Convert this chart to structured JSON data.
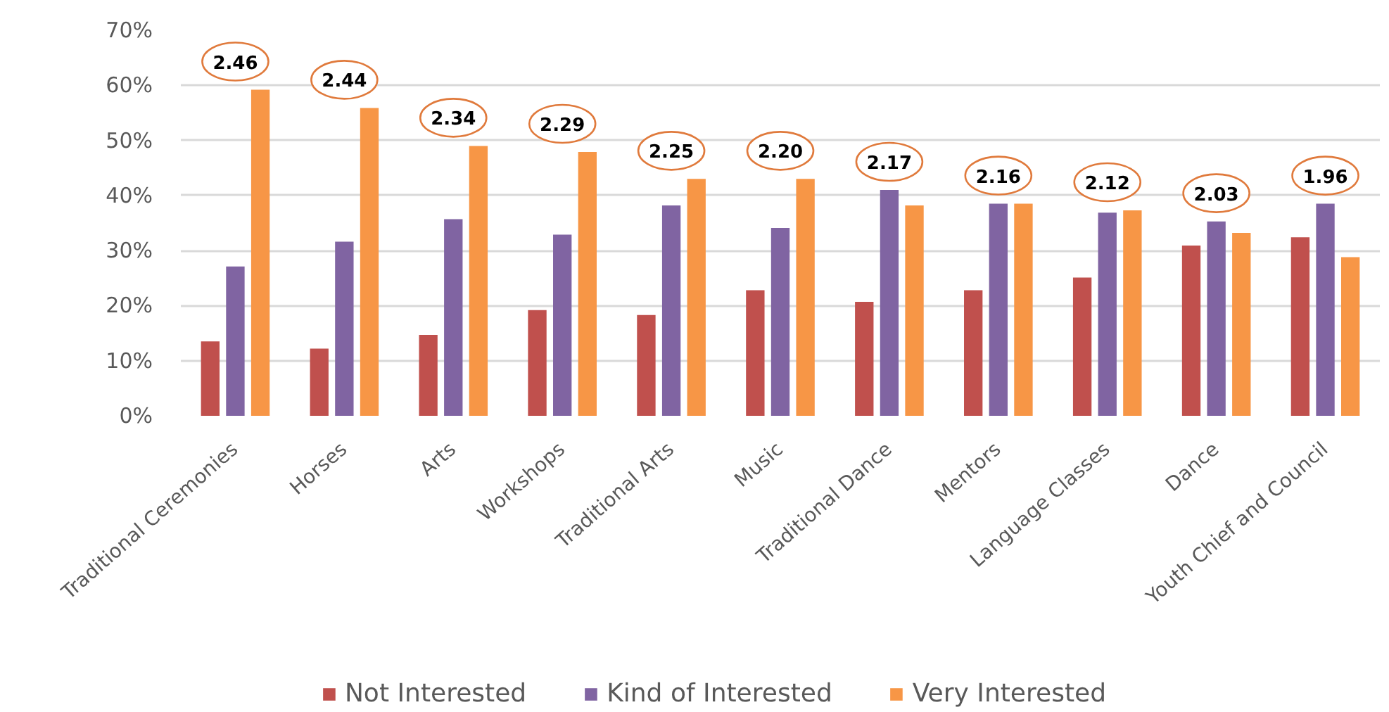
{
  "chart_data": {
    "type": "bar",
    "categories": [
      "Traditional Ceremonies",
      "Horses",
      "Arts",
      "Workshops",
      "Traditional Arts",
      "Music",
      "Traditional Dance",
      "Mentors",
      "Language Classes",
      "Dance",
      "Youth Chief and Council"
    ],
    "series": [
      {
        "name": "Not Interested",
        "color": "#c0504d",
        "values": [
          13.5,
          12.2,
          14.7,
          19.2,
          18.3,
          22.8,
          20.7,
          22.8,
          25.1,
          30.9,
          32.4
        ]
      },
      {
        "name": "Kind of Interested",
        "color": "#8064a2",
        "values": [
          27.1,
          31.6,
          35.7,
          32.9,
          38.2,
          34.1,
          41.0,
          38.5,
          36.9,
          35.3,
          38.5
        ]
      },
      {
        "name": "Very Interested",
        "color": "#f79646",
        "values": [
          59.2,
          55.9,
          49.0,
          47.9,
          43.0,
          43.0,
          38.2,
          38.5,
          37.3,
          33.2,
          28.8
        ]
      }
    ],
    "ylim": [
      0,
      70
    ],
    "yticks": [
      {
        "value": 0,
        "label": "0%"
      },
      {
        "value": 10,
        "label": "10%"
      },
      {
        "value": 20,
        "label": "20%"
      },
      {
        "value": 30,
        "label": "30%"
      },
      {
        "value": 40,
        "label": "40%"
      },
      {
        "value": 50,
        "label": "50%"
      },
      {
        "value": 60,
        "label": "60%"
      },
      {
        "value": 70,
        "label": "70%"
      }
    ],
    "grid": "y",
    "legend": "bottom",
    "annotations": [
      "2.46",
      "2.44",
      "2.34",
      "2.29",
      "2.25",
      "2.20",
      "2.17",
      "2.16",
      "2.12",
      "2.03",
      "1.96"
    ]
  }
}
